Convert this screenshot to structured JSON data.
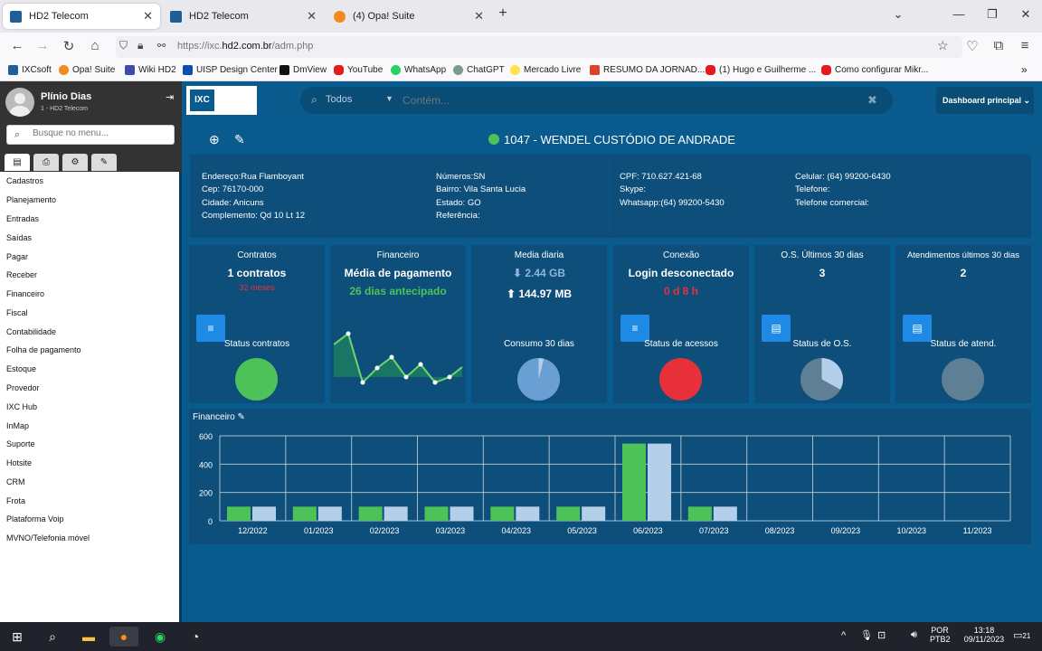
{
  "browser": {
    "tabs": [
      {
        "label": "HD2 Telecom",
        "active": true
      },
      {
        "label": "HD2 Telecom",
        "active": false
      },
      {
        "label": "(4) Opa! Suite",
        "active": false
      }
    ],
    "new_tab": "+",
    "url_domain": "https://ixc.",
    "url_bold": "hd2.com.br",
    "url_path": "/adm.php",
    "bookmarks": [
      "IXCsoft",
      "Opa! Suite",
      "Wiki HD2",
      "UISP Design Center",
      "DmView",
      "YouTube",
      "WhatsApp",
      "ChatGPT",
      "Mercado Livre",
      "RESUMO DA JORNAD...",
      "(1) Hugo e Guilherme ...",
      "Como configurar Mikr..."
    ]
  },
  "sidebar": {
    "user_name": "Plínio Dias",
    "company": "1 - HD2 Telecom",
    "search_placeholder": "Busque no menu...",
    "menu": [
      "Cadastros",
      "Planejamento",
      "Entradas",
      "Saídas",
      "Pagar",
      "Receber",
      "Financeiro",
      "Fiscal",
      "Contabilidade",
      "Folha de pagamento",
      "Estoque",
      "Provedor",
      "IXC Hub",
      "InMap",
      "Suporte",
      "Hotsite",
      "CRM",
      "Frota",
      "Plataforma Voip",
      "MVNO/Telefonia móvel"
    ]
  },
  "topbar": {
    "logo_left": "IXC",
    "logo_right_1": "PRO —",
    "logo_right_2": "VEDOR",
    "search_select": "Todos",
    "search_placeholder": "Contém...",
    "dashboard_select": "Dashboard principal"
  },
  "client": {
    "title": "1047 - WENDEL CUSTÓDIO DE ANDRADE",
    "col1": [
      "Endereço:Rua Flamboyant",
      "Cep: 76170-000",
      "Cidade: Anicuns",
      "Complemento: Qd 10 Lt 12"
    ],
    "col2": [
      "Números:SN",
      "Bairro: Vila Santa Lucia",
      "Estado: GO",
      "Referência:"
    ],
    "col3": [
      "CPF: 710.627.421-68",
      "Skype:",
      "Whatsapp:(64) 99200-5430"
    ],
    "col4": [
      "Celular: (64) 99200-6430",
      "Telefone:",
      "Telefone comercial:"
    ]
  },
  "cards": [
    {
      "title": "Contratos",
      "value": "1 contratos",
      "sub": "32 meses",
      "label": "Status contratos"
    },
    {
      "title": "Financeiro",
      "value": "Média de pagamento",
      "sub": "26 dias antecipado",
      "label": ""
    },
    {
      "title": "Media diaria",
      "value": "2.44 GB",
      "sub": "144.97 MB",
      "label": "Consumo 30 dias"
    },
    {
      "title": "Conexão",
      "value": "Login desconectado",
      "sub": "0 d 8 h",
      "label": "Status de acessos"
    },
    {
      "title": "O.S. Últimos 30 dias",
      "value": "3",
      "sub": "",
      "label": "Status de O.S."
    },
    {
      "title": "Atendimentos últimos 30 dias",
      "value": "2",
      "sub": "",
      "label": "Status de atend."
    }
  ],
  "colors": {
    "main_bg": "#0a5b8d",
    "panel_bg": "#0d4f7a",
    "green": "#4cc259",
    "red": "#e8303b",
    "light_blue": "#b4cfea",
    "button_blue": "#1f8ae6"
  },
  "finance_title": "Financeiro",
  "chart_data": {
    "type": "bar",
    "categories": [
      "12/2022",
      "01/2023",
      "02/2023",
      "03/2023",
      "04/2023",
      "05/2023",
      "06/2023",
      "07/2023",
      "08/2023",
      "09/2023",
      "10/2023",
      "11/2023"
    ],
    "series": [
      {
        "values": [
          100,
          100,
          100,
          100,
          100,
          100,
          545,
          100,
          0,
          0,
          0,
          0
        ]
      },
      {
        "values": [
          100,
          100,
          100,
          100,
          100,
          100,
          545,
          100,
          0,
          0,
          0,
          0
        ]
      }
    ],
    "ylim": [
      0,
      600
    ],
    "yticks": [
      0,
      200,
      400,
      600
    ],
    "grid": true
  },
  "taskbar": {
    "lang": "POR",
    "layout": "PTB2",
    "time": "13:18",
    "date": "09/11/2023",
    "notif": "21"
  }
}
